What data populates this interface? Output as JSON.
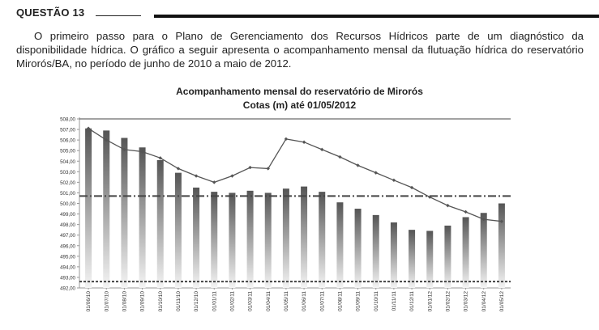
{
  "question": {
    "title": "QUESTÃO 13",
    "text": "O primeiro passo para o Plano de Gerenciamento dos Recursos Hídricos parte de um diagnóstico da disponibilidade hídrica. O gráfico a seguir apresenta o acompanhamento mensal da flutuação hídrica do reservatório Mirorós/BA, no período de junho de 2010 a maio de 2012."
  },
  "chart_data": {
    "type": "bar",
    "title": "Acompanhamento mensal do reservatório de Mirorós",
    "subtitle": "Cotas (m) até 01/05/2012",
    "categories": [
      "01/06/10",
      "01/07/10",
      "01/08/10",
      "01/09/10",
      "01/10/10",
      "01/11/10",
      "01/12/10",
      "01/01/11",
      "01/02/11",
      "01/03/11",
      "01/04/11",
      "01/05/11",
      "01/06/11",
      "01/07/11",
      "01/08/11",
      "01/09/11",
      "01/10/11",
      "01/11/11",
      "01/12/11",
      "01/01/12",
      "01/02/12",
      "01/03/12",
      "01/04/12",
      "01/05/12"
    ],
    "series": [
      {
        "type": "bar",
        "values": [
          507.1,
          506.9,
          506.2,
          505.3,
          504.1,
          502.9,
          501.5,
          501.1,
          501.0,
          501.2,
          501.0,
          501.4,
          501.6,
          501.1,
          500.1,
          499.5,
          498.9,
          498.2,
          497.5,
          497.4,
          497.9,
          498.7,
          499.1,
          500.0
        ]
      },
      {
        "type": "line",
        "values": [
          507.1,
          506.0,
          505.1,
          504.9,
          504.3,
          503.3,
          502.6,
          502.0,
          502.6,
          503.4,
          503.3,
          506.1,
          505.8,
          505.1,
          504.4,
          503.6,
          502.9,
          502.2,
          501.5,
          500.6,
          499.8,
          499.2,
          498.5,
          498.3
        ]
      }
    ],
    "reference_lines": [
      {
        "y": 508.0,
        "style": "solid"
      },
      {
        "y": 500.7,
        "style": "dash-dot"
      },
      {
        "y": 492.6,
        "style": "dotted"
      }
    ],
    "y_ticks": [
      "492,00",
      "493,00",
      "494,00",
      "495,00",
      "496,00",
      "497,00",
      "498,00",
      "499,00",
      "500,00",
      "501,00",
      "502,00",
      "503,00",
      "504,00",
      "505,00",
      "506,00",
      "507,00",
      "508,00"
    ],
    "ylim": [
      492,
      508
    ],
    "xlabel": "",
    "ylabel": "",
    "grid": false,
    "legend": "none",
    "colors": {
      "bar_top": "#555555",
      "bar_bottom": "#f4f4f4",
      "line": "#555555",
      "marker": "#555555",
      "axis": "#999999",
      "reference": "#444444"
    }
  }
}
